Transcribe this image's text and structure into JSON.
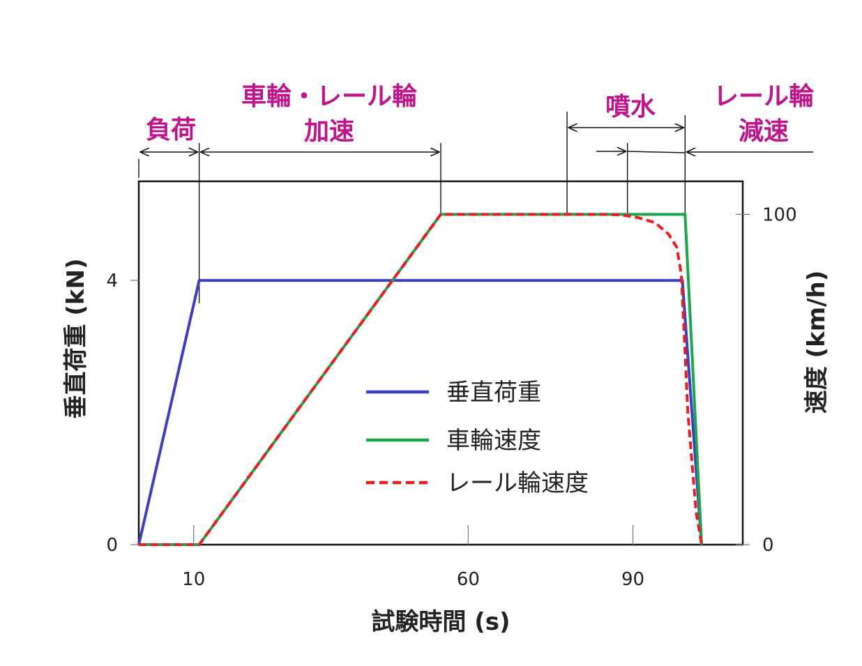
{
  "colors": {
    "load": "#3a3fc4",
    "wheel_speed": "#1aa64a",
    "rail_speed": "#ee1c1c",
    "annotation": "#c0148c",
    "axis": "#111111"
  },
  "chart_data": {
    "type": "line",
    "xlabel": "試験時間 (s)",
    "ylabel_left": "垂直荷重 (kN)",
    "ylabel_right": "速度 (km/h)",
    "x_ticks": [
      10,
      60,
      90
    ],
    "y_left_ticks": [
      0,
      4
    ],
    "y_right_ticks": [
      0,
      100
    ],
    "xlim": [
      0,
      110
    ],
    "ylim_left": [
      0,
      5.5
    ],
    "ylim_right": [
      0,
      110
    ],
    "grid": false,
    "legend_position": "center-right",
    "series": [
      {
        "name": "垂直荷重",
        "axis": "left",
        "style": "solid",
        "points": [
          [
            0,
            0
          ],
          [
            11,
            4
          ],
          [
            99,
            4
          ],
          [
            102.5,
            0
          ]
        ]
      },
      {
        "name": "車輪速度",
        "axis": "right",
        "style": "solid",
        "points": [
          [
            0,
            0
          ],
          [
            11,
            0
          ],
          [
            55,
            100
          ],
          [
            99.5,
            100
          ],
          [
            102.5,
            0
          ]
        ]
      },
      {
        "name": "レール輪速度",
        "axis": "right",
        "style": "dashed",
        "points": [
          [
            0,
            0
          ],
          [
            11,
            0
          ],
          [
            55,
            100
          ],
          [
            85,
            100
          ],
          [
            88,
            99.8
          ],
          [
            91,
            99
          ],
          [
            94,
            97.5
          ],
          [
            96.5,
            94
          ],
          [
            98,
            90
          ],
          [
            98.8,
            82
          ],
          [
            99.3,
            65
          ],
          [
            100,
            40
          ],
          [
            101.5,
            10
          ],
          [
            102.5,
            0
          ]
        ]
      }
    ],
    "phases": [
      {
        "label": [
          "負荷"
        ],
        "from": 0,
        "to": 11
      },
      {
        "label": [
          "車輪・レール輪",
          "加速"
        ],
        "from": 11,
        "to": 55
      },
      {
        "label": [
          "噴水"
        ],
        "from": 78,
        "to": 99
      },
      {
        "label": [
          "レール輪",
          "減速"
        ],
        "from": 99.5,
        "to": null
      }
    ],
    "phase_markers": [
      0,
      11,
      55,
      78,
      89,
      99.5
    ]
  }
}
